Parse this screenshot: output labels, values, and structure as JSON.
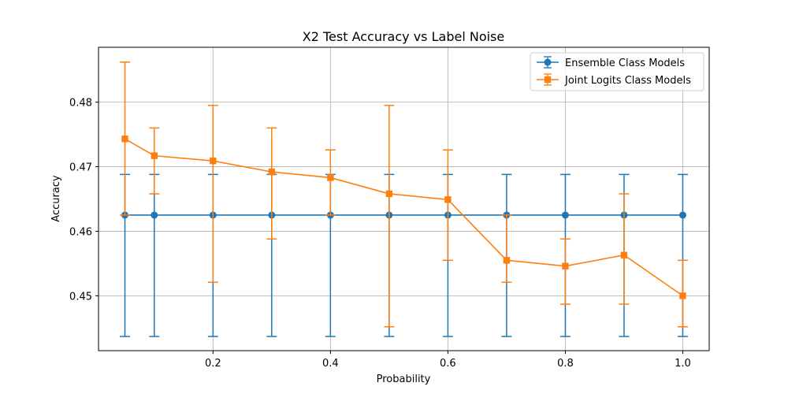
{
  "chart_data": {
    "type": "line",
    "title": "X2 Test Accuracy vs Label Noise",
    "xlabel": "Probability",
    "ylabel": "Accuracy",
    "xlim": [
      0.005,
      1.045
    ],
    "ylim": [
      0.4415,
      0.4885
    ],
    "xticks": [
      0.2,
      0.4,
      0.6,
      0.8,
      1.0
    ],
    "xtick_labels": [
      "0.2",
      "0.4",
      "0.6",
      "0.8",
      "1.0"
    ],
    "yticks": [
      0.45,
      0.46,
      0.47,
      0.48
    ],
    "ytick_labels": [
      "0.45",
      "0.46",
      "0.47",
      "0.48"
    ],
    "grid": true,
    "legend_position": "top-right",
    "series": [
      {
        "name": "Ensemble Class Models",
        "color": "#1f77b4",
        "marker": "circle",
        "x": [
          0.05,
          0.1,
          0.2,
          0.3,
          0.4,
          0.5,
          0.6,
          0.7,
          0.8,
          0.9,
          1.0
        ],
        "y": [
          0.4625,
          0.4625,
          0.4625,
          0.4625,
          0.4625,
          0.4625,
          0.4625,
          0.4625,
          0.4625,
          0.4625,
          0.4625
        ],
        "err_low": [
          0.4437,
          0.4437,
          0.4437,
          0.4437,
          0.4437,
          0.4437,
          0.4437,
          0.4437,
          0.4437,
          0.4437,
          0.4437
        ],
        "err_high": [
          0.4688,
          0.4688,
          0.4688,
          0.4688,
          0.4688,
          0.4688,
          0.4688,
          0.4688,
          0.4688,
          0.4688,
          0.4688
        ]
      },
      {
        "name": "Joint Logits Class Models",
        "color": "#ff7f0e",
        "marker": "square",
        "x": [
          0.05,
          0.1,
          0.2,
          0.3,
          0.4,
          0.5,
          0.6,
          0.7,
          0.8,
          0.9,
          1.0
        ],
        "y": [
          0.4743,
          0.4717,
          0.4709,
          0.4692,
          0.4683,
          0.4658,
          0.4649,
          0.4555,
          0.4546,
          0.4563,
          0.45
        ],
        "err_low": [
          0.4625,
          0.4658,
          0.4521,
          0.4588,
          0.4625,
          0.4452,
          0.4555,
          0.4521,
          0.4487,
          0.4487,
          0.4452
        ],
        "err_high": [
          0.4862,
          0.476,
          0.4795,
          0.476,
          0.4726,
          0.4795,
          0.4726,
          0.4625,
          0.4588,
          0.4658,
          0.4555
        ]
      }
    ]
  }
}
